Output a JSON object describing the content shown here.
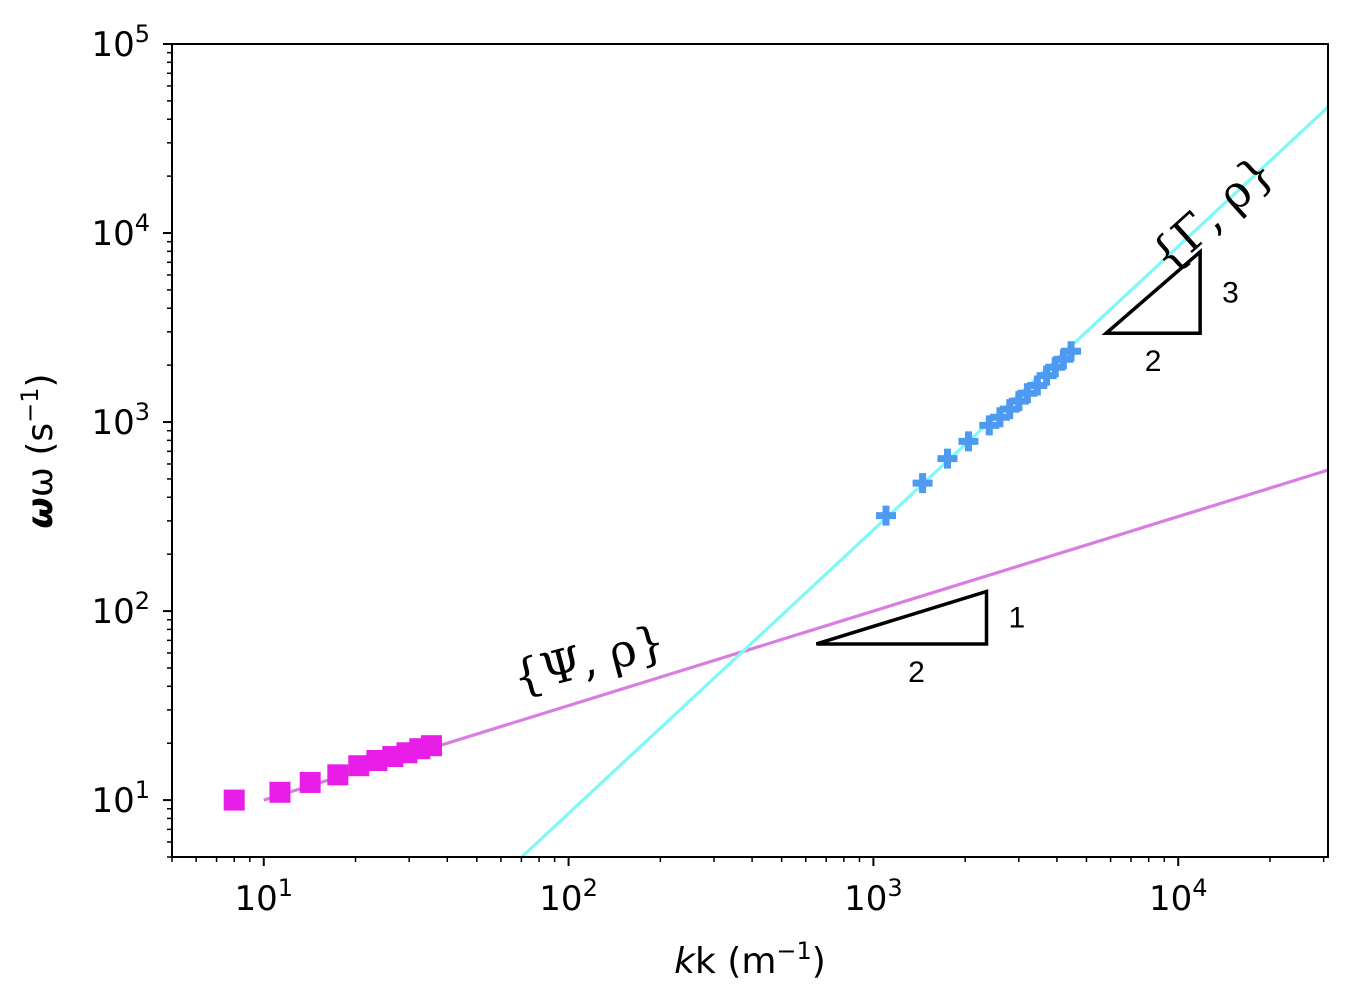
{
  "chart_data": {
    "type": "scatter",
    "xscale": "log",
    "yscale": "log",
    "xlim": [
      5,
      31000
    ],
    "ylim": [
      5,
      100000
    ],
    "xlabel": {
      "base": "k (m",
      "sup": "−1",
      "end": ")"
    },
    "ylabel": {
      "base": "ω (s",
      "sup": "−1",
      "end": ")"
    },
    "xticks": [
      {
        "value": 10,
        "base": "10",
        "exp": "1"
      },
      {
        "value": 100,
        "base": "10",
        "exp": "2"
      },
      {
        "value": 1000,
        "base": "10",
        "exp": "3"
      },
      {
        "value": 10000,
        "base": "10",
        "exp": "4"
      }
    ],
    "yticks": [
      {
        "value": 10,
        "base": "10",
        "exp": "1"
      },
      {
        "value": 100,
        "base": "10",
        "exp": "2"
      },
      {
        "value": 1000,
        "base": "10",
        "exp": "3"
      },
      {
        "value": 10000,
        "base": "10",
        "exp": "4"
      },
      {
        "value": 100000,
        "base": "10",
        "exp": "5"
      }
    ],
    "series": [
      {
        "marker": "square",
        "color": "#e81ee8",
        "points": [
          [
            8,
            10
          ],
          [
            11.3,
            11
          ],
          [
            14.2,
            12.4
          ],
          [
            17.5,
            13.6
          ],
          [
            20.5,
            15.2
          ],
          [
            23.5,
            16.2
          ],
          [
            26.5,
            17
          ],
          [
            29.5,
            17.8
          ],
          [
            32.5,
            18.7
          ],
          [
            35.5,
            19.4
          ]
        ]
      },
      {
        "marker": "plus",
        "color": "#4d9af0",
        "points": [
          [
            1100,
            320
          ],
          [
            1450,
            475
          ],
          [
            1750,
            640
          ],
          [
            2050,
            790
          ],
          [
            2400,
            960
          ],
          [
            2600,
            1060
          ],
          [
            2800,
            1170
          ],
          [
            3000,
            1290
          ],
          [
            3200,
            1420
          ],
          [
            3450,
            1560
          ],
          [
            3700,
            1760
          ],
          [
            3950,
            1950
          ],
          [
            4200,
            2150
          ],
          [
            4450,
            2370
          ]
        ]
      }
    ],
    "fits": [
      {
        "color": "#d97de0",
        "x_range": [
          10,
          31000
        ],
        "points": [
          [
            10,
            10
          ],
          [
            31000,
            556.8
          ]
        ]
      },
      {
        "color": "#7ff8f8",
        "x_range": [
          70.2,
          31000
        ],
        "points": [
          [
            70.2,
            5
          ],
          [
            31000,
            46380
          ]
        ]
      }
    ],
    "annotations": [
      {
        "text": "{Ψ, ρ}",
        "x": 120,
        "y": 46
      },
      {
        "text": "{Γ, ρ}",
        "x": 14000,
        "y": 11000
      }
    ],
    "slope_triangles": [
      {
        "slope_label": "1",
        "run_label": "2",
        "vertices": [
          [
            650,
            67
          ],
          [
            2350,
            67
          ],
          [
            2350,
            127
          ]
        ]
      },
      {
        "slope_label": "3",
        "run_label": "2",
        "vertices": [
          [
            5800,
            2950
          ],
          [
            11800,
            2950
          ],
          [
            11800,
            7950
          ]
        ]
      }
    ],
    "grid": false,
    "legend": "none"
  }
}
